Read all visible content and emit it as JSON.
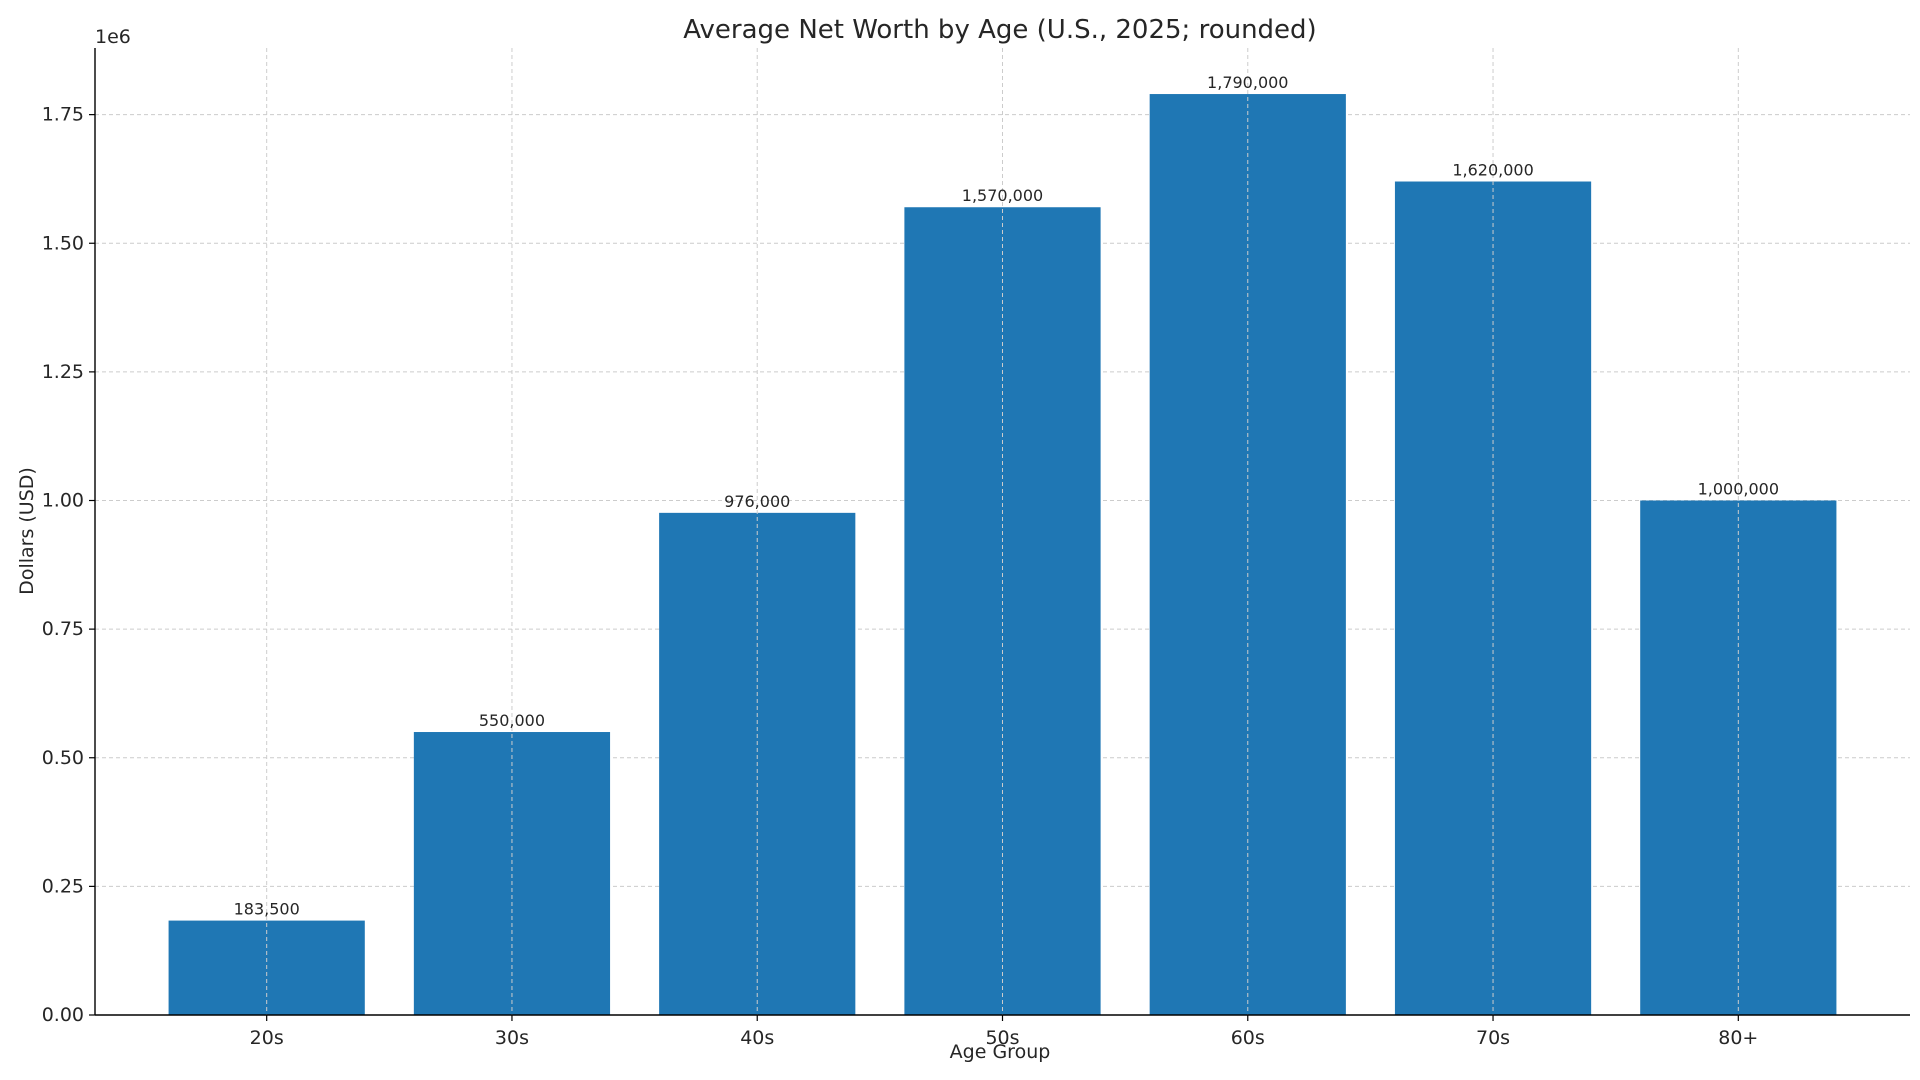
{
  "chart_data": {
    "type": "bar",
    "title": "Average Net Worth by Age (U.S., 2025; rounded)",
    "xlabel": "Age Group",
    "ylabel": "Dollars (USD)",
    "y_offset_label": "1e6",
    "categories": [
      "20s",
      "30s",
      "40s",
      "50s",
      "60s",
      "70s",
      "80+"
    ],
    "values": [
      183500,
      550000,
      976000,
      1570000,
      1790000,
      1620000,
      1000000
    ],
    "value_labels": [
      "183,500",
      "550,000",
      "976,000",
      "1,570,000",
      "1,790,000",
      "1,620,000",
      "1,000,000"
    ],
    "ylim": [
      0,
      1879500
    ],
    "yticks": [
      0,
      250000,
      500000,
      750000,
      1000000,
      1250000,
      1500000,
      1750000
    ],
    "ytick_labels": [
      "0.00",
      "0.25",
      "0.50",
      "0.75",
      "1.00",
      "1.25",
      "1.50",
      "1.75"
    ],
    "grid": true,
    "bar_color": "#1f77b4"
  }
}
